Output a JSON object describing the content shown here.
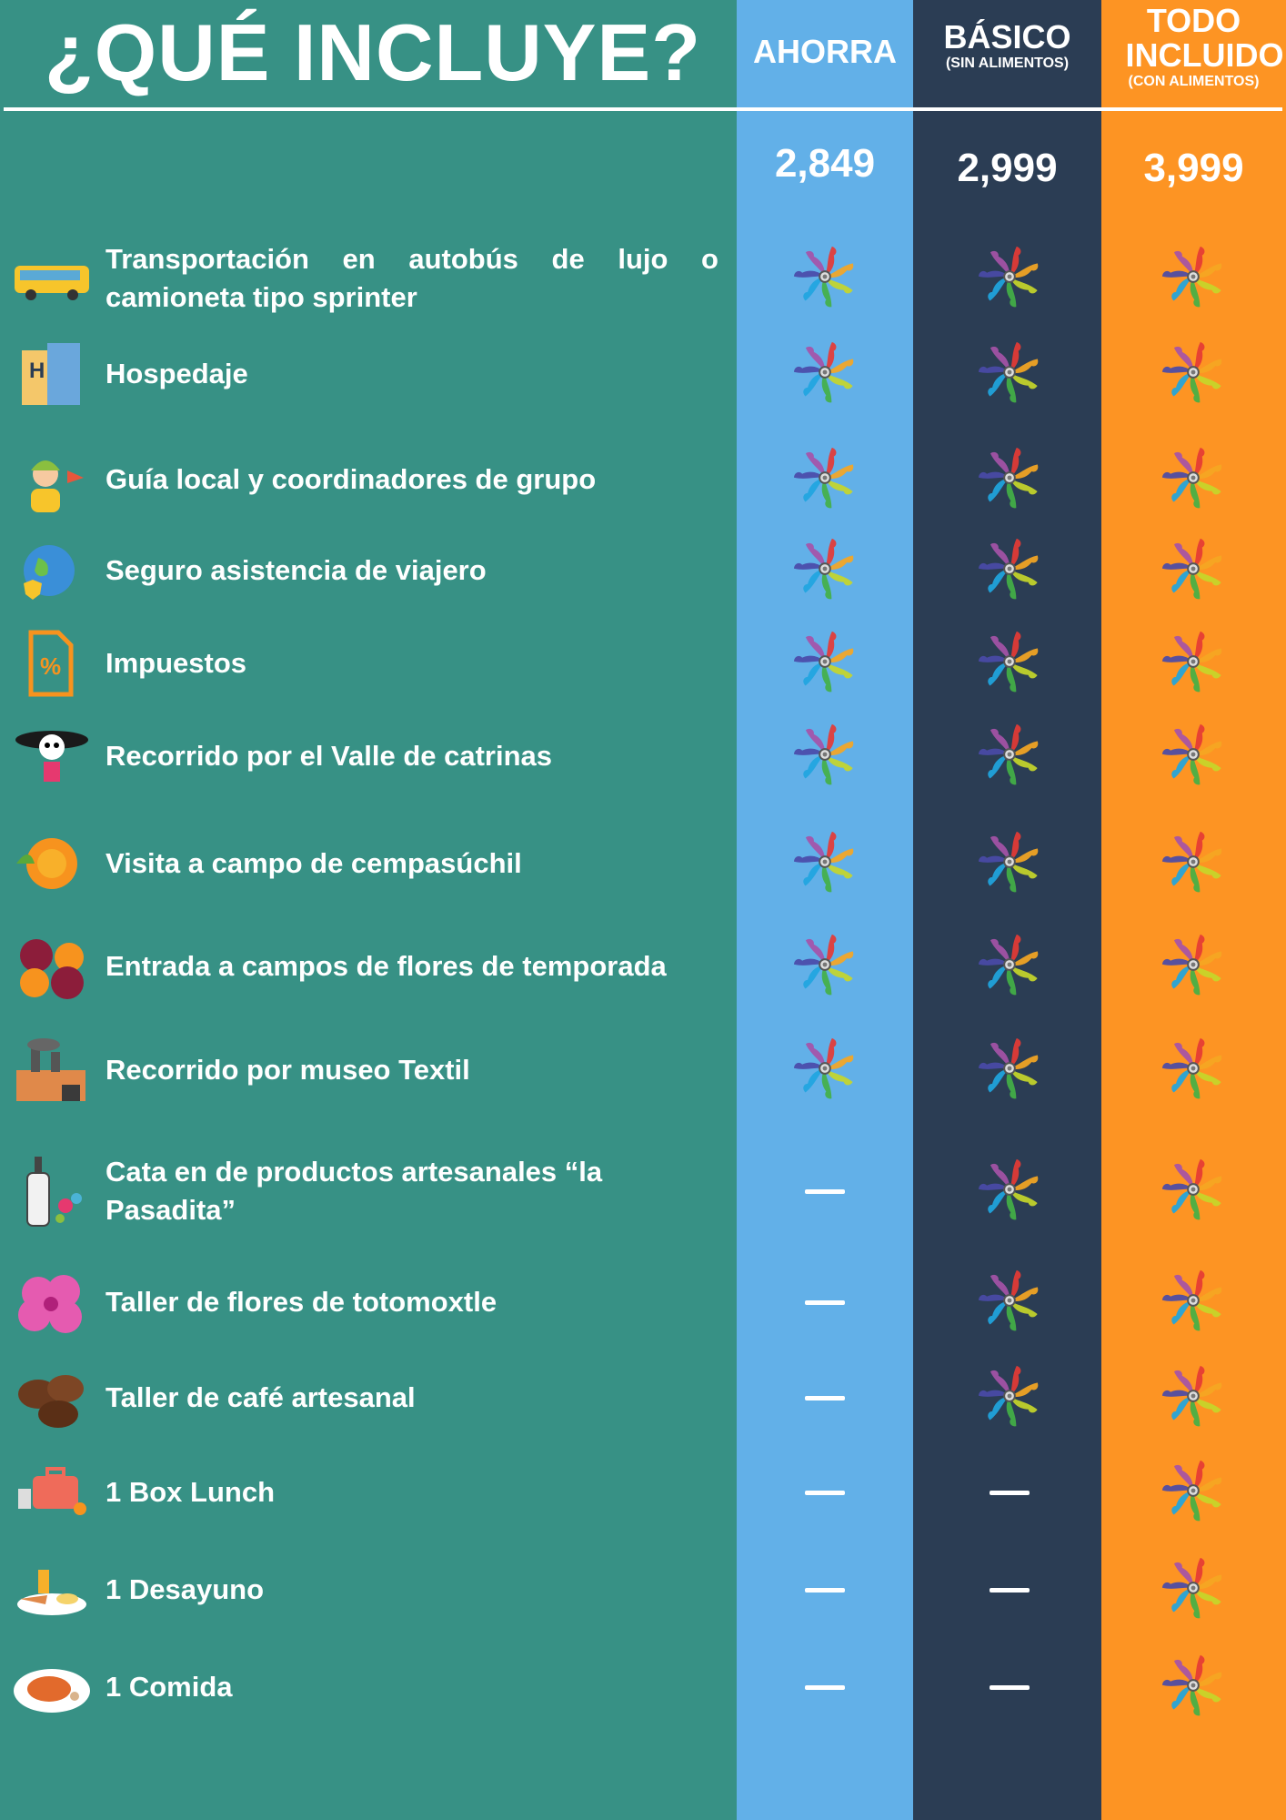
{
  "title": "¿QUÉ INCLUYE?",
  "plans": [
    {
      "name": "AHORRA",
      "note": "",
      "price": "2,849",
      "color": "#62b0e8"
    },
    {
      "name": "BÁSICO",
      "note": "(SIN ALIMENTOS)",
      "price": "2,999",
      "color": "#2b3d54"
    },
    {
      "name": "TODO INCLUIDO",
      "note": "(CON ALIMENTOS)",
      "price": "3,999",
      "color": "#fd9423"
    }
  ],
  "check_icon": "pinwheel-icon",
  "not_included_icon": "dash",
  "features": [
    {
      "label": "Transportación en autobús de lujo o camioneta tipo sprinter",
      "icon": "bus-icon",
      "included": [
        true,
        true,
        true
      ]
    },
    {
      "label": "Hospedaje",
      "icon": "hotel-icon",
      "included": [
        true,
        true,
        true
      ]
    },
    {
      "label": "Guía local y coordinadores de grupo",
      "icon": "guide-icon",
      "included": [
        true,
        true,
        true
      ]
    },
    {
      "label": "Seguro asistencia de viajero",
      "icon": "globe-shield-icon",
      "included": [
        true,
        true,
        true
      ]
    },
    {
      "label": "Impuestos",
      "icon": "tax-document-icon",
      "included": [
        true,
        true,
        true
      ]
    },
    {
      "label": "Recorrido por el Valle de catrinas",
      "icon": "catrina-icon",
      "included": [
        true,
        true,
        true
      ]
    },
    {
      "label": "Visita a campo de cempasúchil",
      "icon": "marigold-icon",
      "included": [
        true,
        true,
        true
      ]
    },
    {
      "label": "Entrada a campos de flores de temporada",
      "icon": "flowers-icon",
      "included": [
        true,
        true,
        true
      ]
    },
    {
      "label": "Recorrido por museo Textil",
      "icon": "factory-icon",
      "included": [
        true,
        true,
        true
      ]
    },
    {
      "label": "Cata en de productos artesanales “la Pasadita”",
      "icon": "bottle-icon",
      "included": [
        false,
        true,
        true
      ]
    },
    {
      "label": "Taller de flores de totomoxtle",
      "icon": "hibiscus-icon",
      "included": [
        false,
        true,
        true
      ]
    },
    {
      "label": "Taller de café artesanal",
      "icon": "coffee-beans-icon",
      "included": [
        false,
        true,
        true
      ]
    },
    {
      "label": "1 Box Lunch",
      "icon": "lunchbox-icon",
      "included": [
        false,
        false,
        true
      ]
    },
    {
      "label": "1 Desayuno",
      "icon": "breakfast-icon",
      "included": [
        false,
        false,
        true
      ]
    },
    {
      "label": "1 Comida",
      "icon": "steak-plate-icon",
      "included": [
        false,
        false,
        true
      ]
    }
  ]
}
